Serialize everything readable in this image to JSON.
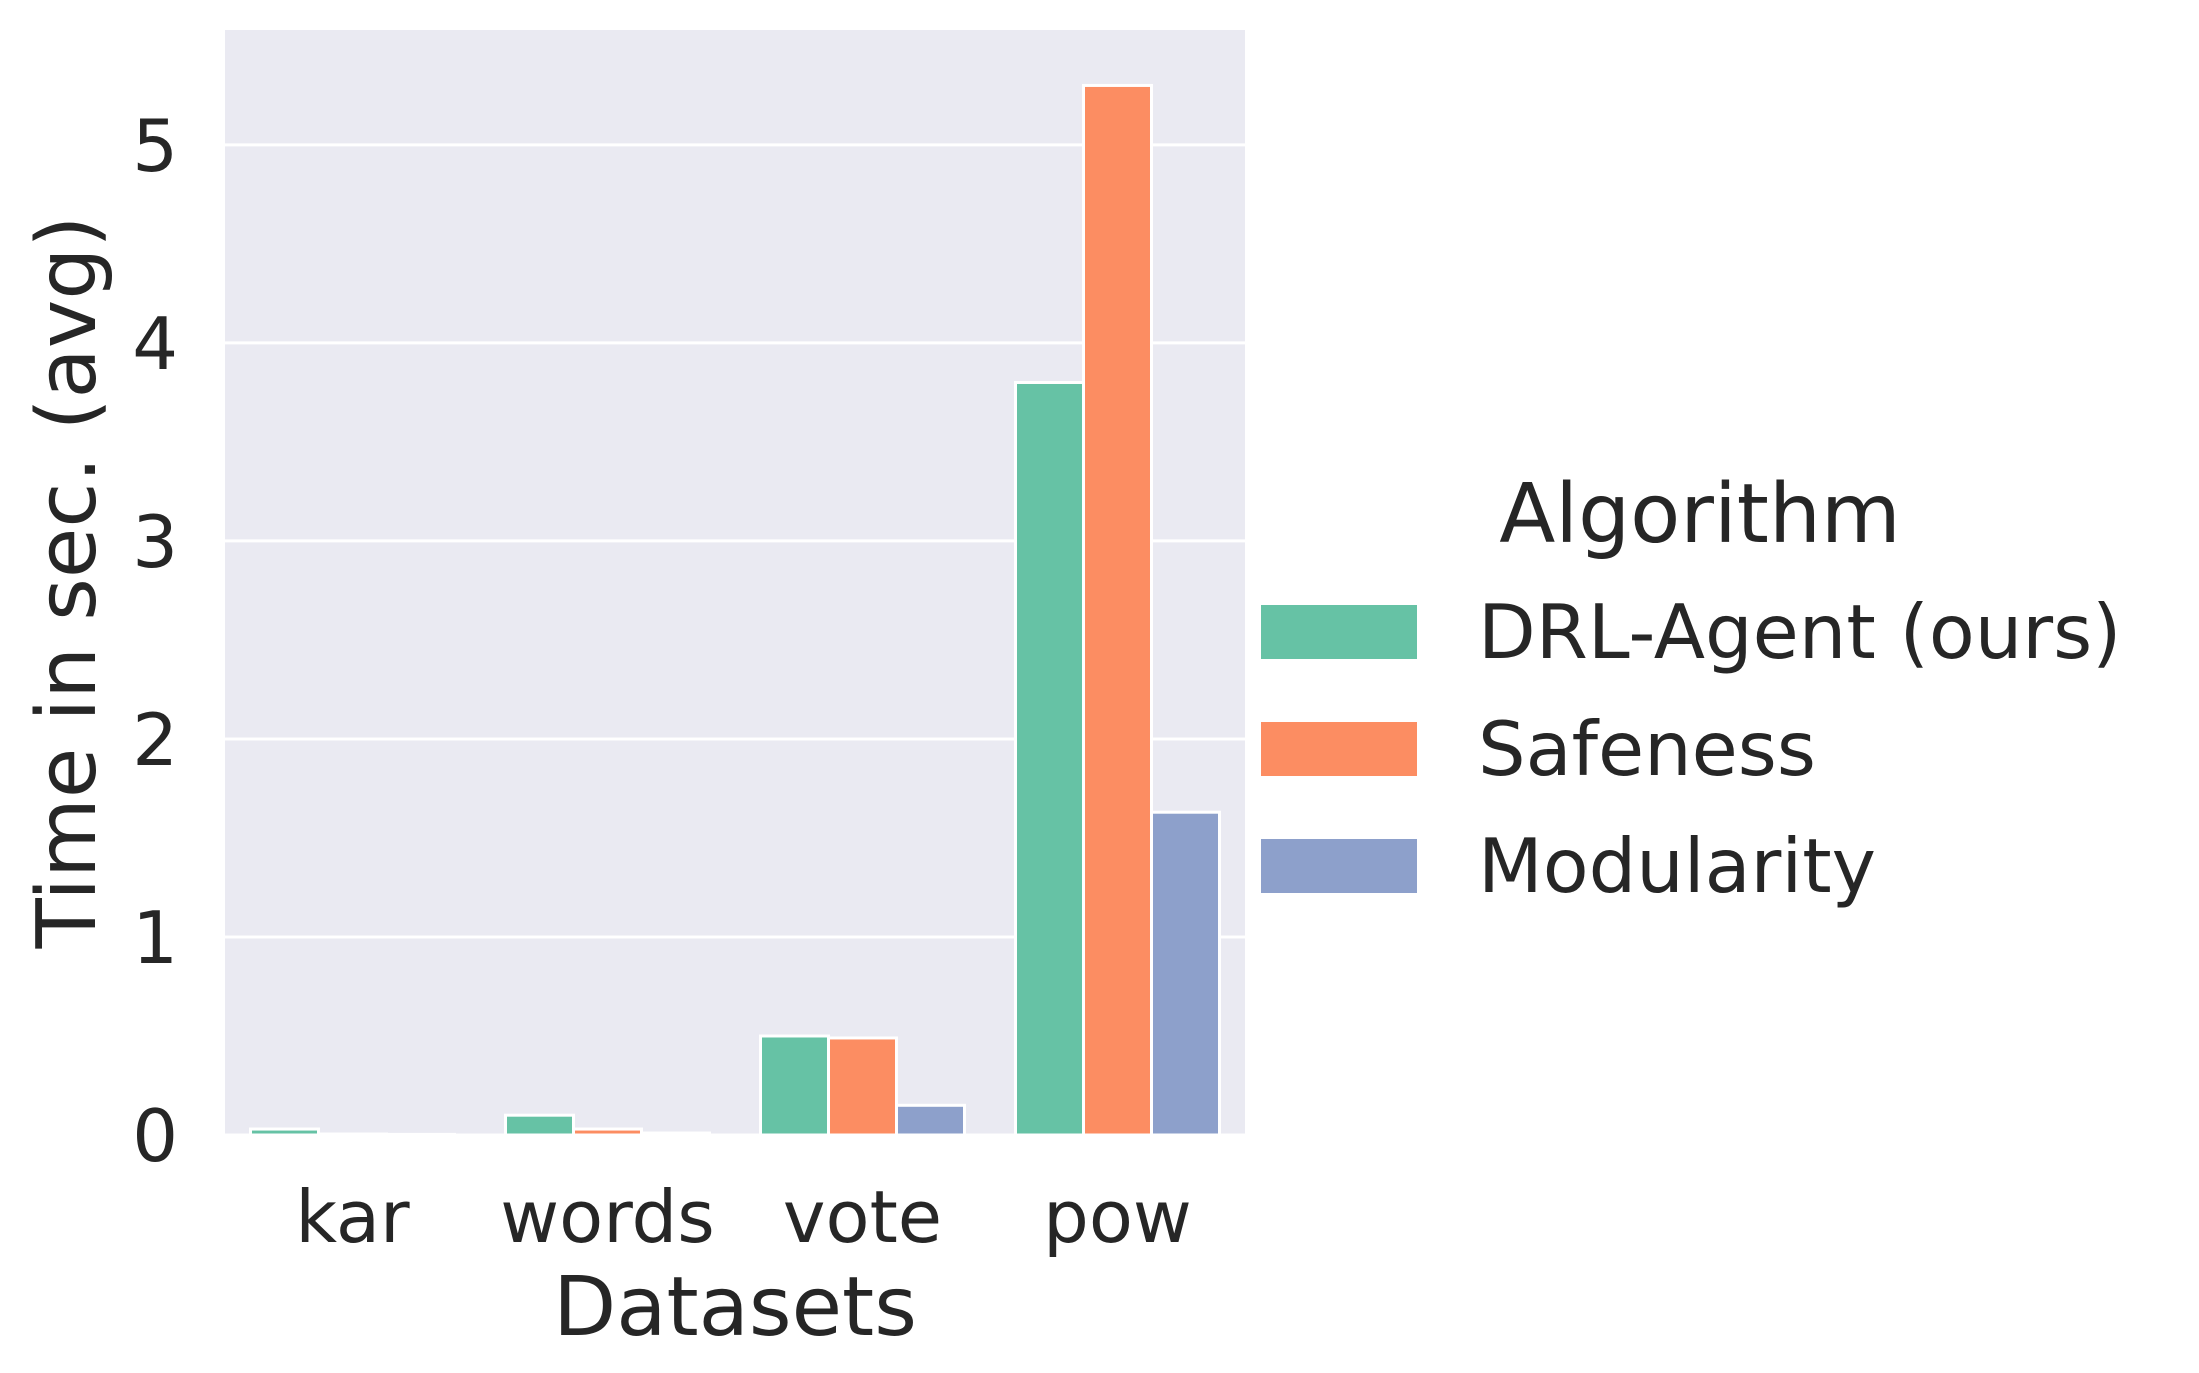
{
  "chart_data": {
    "type": "bar",
    "xlabel": "Datasets",
    "ylabel": "Time in sec. (avg)",
    "categories": [
      "kar",
      "words",
      "vote",
      "pow"
    ],
    "ylim": [
      0,
      5.58
    ],
    "yticks": [
      0,
      1,
      2,
      3,
      4,
      5
    ],
    "grid": true,
    "legend": {
      "title": "Algorithm",
      "placement": "center-right, outside plot"
    },
    "series": [
      {
        "name": "DRL-Agent (ours)",
        "color": "#66c2a5",
        "values": [
          0.03,
          0.1,
          0.5,
          3.8
        ]
      },
      {
        "name": "Safeness",
        "color": "#fc8d62",
        "values": [
          0.005,
          0.03,
          0.49,
          5.3
        ]
      },
      {
        "name": "Modularity",
        "color": "#8da0cb",
        "values": [
          0.003,
          0.01,
          0.15,
          1.63
        ]
      }
    ],
    "plot_background": "#eaeaf2",
    "grid_color": "#ffffff"
  }
}
